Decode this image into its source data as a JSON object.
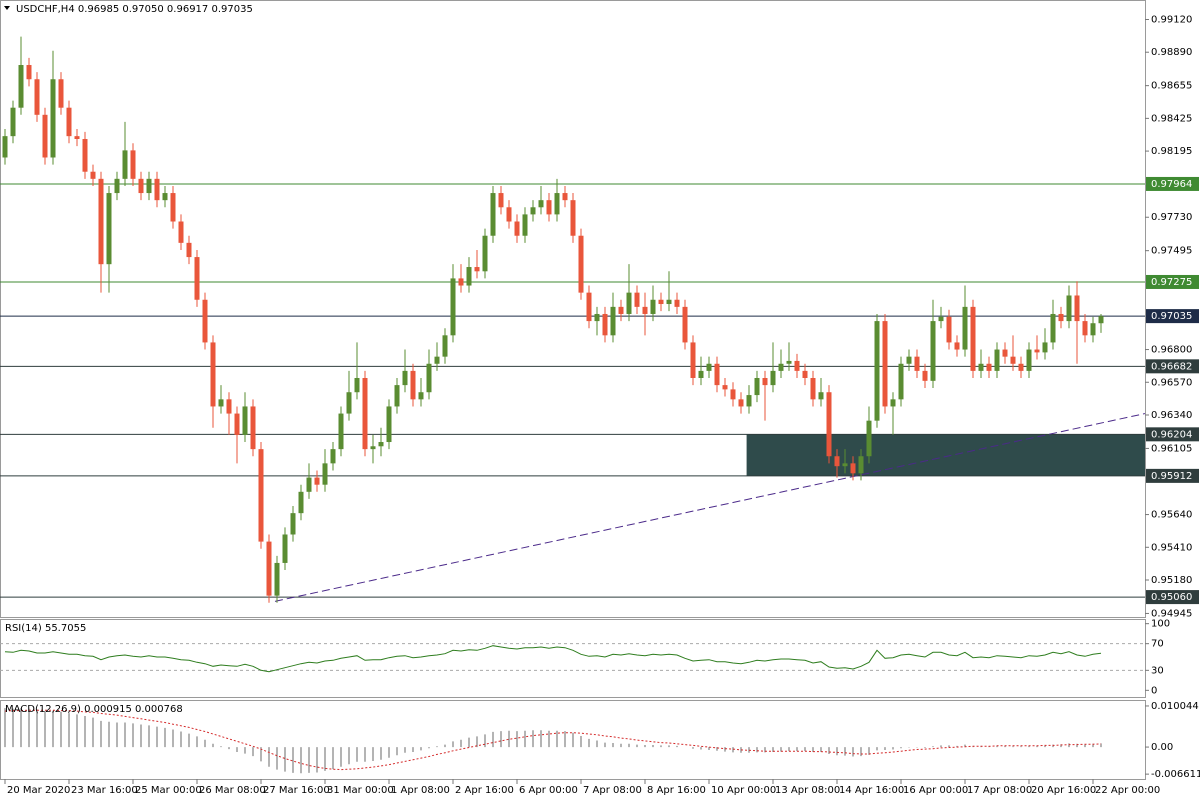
{
  "chart_data": [
    {
      "type": "candlestick",
      "title": "USDCHF,H4  0.96985 0.97050 0.96917 0.97035",
      "xlim": [
        -0.625,
        142.5
      ],
      "xticks": [
        {
          "value": 0,
          "label": "20 Mar 2020"
        },
        {
          "value": 8,
          "label": "23 Mar 16:00"
        },
        {
          "value": 16,
          "label": "25 Mar 00:00"
        },
        {
          "value": 24,
          "label": "26 Mar 08:00"
        },
        {
          "value": 32,
          "label": "27 Mar 16:00"
        },
        {
          "value": 40,
          "label": "31 Mar 00:00"
        },
        {
          "value": 48,
          "label": "1 Apr 08:00"
        },
        {
          "value": 56,
          "label": "2 Apr 16:00"
        },
        {
          "value": 64,
          "label": "6 Apr 00:00"
        },
        {
          "value": 72,
          "label": "7 Apr 08:00"
        },
        {
          "value": 80,
          "label": "8 Apr 16:00"
        },
        {
          "value": 88,
          "label": "10 Apr 00:00"
        },
        {
          "value": 96,
          "label": "13 Apr 08:00"
        },
        {
          "value": 104,
          "label": "14 Apr 16:00"
        },
        {
          "value": 112,
          "label": "16 Apr 00:00"
        },
        {
          "value": 120,
          "label": "17 Apr 08:00"
        },
        {
          "value": 128,
          "label": "20 Apr 16:00"
        },
        {
          "value": 136,
          "label": "22 Apr 00:00"
        }
      ],
      "ylim": [
        0.9492,
        0.9925
      ],
      "yticks": [
        {
          "value": 0.9912,
          "label": "0.99120"
        },
        {
          "value": 0.9889,
          "label": "0.98890"
        },
        0.98655,
        0.98425,
        0.98195,
        {
          "value": 0.9773,
          "label": "0.97730"
        },
        0.97495,
        {
          "value": 0.968,
          "label": "0.96800"
        },
        {
          "value": 0.9657,
          "label": "0.96570"
        },
        {
          "value": 0.9634,
          "label": "0.96340"
        },
        0.96105,
        {
          "value": 0.9564,
          "label": "0.95640"
        },
        {
          "value": 0.9541,
          "label": "0.95410"
        },
        {
          "value": 0.9518,
          "label": "0.95180"
        },
        0.94945
      ],
      "up_color": "#5a8c32",
      "down_color": "#e9563b",
      "open": [
        0.9815,
        0.983,
        0.985,
        0.988,
        0.987,
        0.9845,
        0.9815,
        0.987,
        0.985,
        0.983,
        0.9828,
        0.9805,
        0.98,
        0.974,
        0.979,
        0.98,
        0.982,
        0.98,
        0.979,
        0.98,
        0.9785,
        0.979,
        0.977,
        0.9755,
        0.9745,
        0.9715,
        0.9685,
        0.964,
        0.9645,
        0.9635,
        0.962,
        0.964,
        0.961,
        0.9545,
        0.9507,
        0.953,
        0.955,
        0.9565,
        0.958,
        0.959,
        0.9585,
        0.96,
        0.961,
        0.9635,
        0.965,
        0.966,
        0.961,
        0.9612,
        0.9615,
        0.964,
        0.9655,
        0.9665,
        0.9645,
        0.965,
        0.967,
        0.9675,
        0.969,
        0.973,
        0.9725,
        0.9738,
        0.9735,
        0.976,
        0.979,
        0.978,
        0.977,
        0.976,
        0.9775,
        0.978,
        0.9785,
        0.9775,
        0.979,
        0.9785,
        0.976,
        0.972,
        0.97,
        0.9705,
        0.969,
        0.971,
        0.9705,
        0.972,
        0.971,
        0.9705,
        0.9715,
        0.9712,
        0.9715,
        0.971,
        0.9685,
        0.966,
        0.9665,
        0.967,
        0.9655,
        0.9652,
        0.9645,
        0.964,
        0.9648,
        0.966,
        0.9655,
        0.9665,
        0.967,
        0.9672,
        0.9665,
        0.966,
        0.9645,
        0.965,
        0.9605,
        0.9598,
        0.96,
        0.9593,
        0.9605,
        0.963,
        0.97,
        0.964,
        0.9645,
        0.967,
        0.9675,
        0.9665,
        0.9658,
        0.97,
        0.9703,
        0.9685,
        0.968,
        0.971,
        0.9665,
        0.967,
        0.9665,
        0.968,
        0.9675,
        0.967,
        0.9665,
        0.968,
        0.9678,
        0.9685,
        0.9705,
        0.97,
        0.9718,
        0.97,
        0.969,
        0.96985
      ],
      "high": [
        0.9835,
        0.9855,
        0.99,
        0.9885,
        0.9875,
        0.985,
        0.989,
        0.9875,
        0.9855,
        0.9835,
        0.9833,
        0.981,
        0.9805,
        0.9795,
        0.9805,
        0.984,
        0.9825,
        0.9805,
        0.9805,
        0.9805,
        0.9795,
        0.9795,
        0.9775,
        0.976,
        0.975,
        0.972,
        0.969,
        0.9655,
        0.965,
        0.964,
        0.965,
        0.9645,
        0.9615,
        0.955,
        0.9535,
        0.9555,
        0.957,
        0.9585,
        0.96,
        0.9595,
        0.961,
        0.9615,
        0.964,
        0.9665,
        0.9685,
        0.9665,
        0.962,
        0.9625,
        0.9645,
        0.966,
        0.968,
        0.967,
        0.966,
        0.968,
        0.9685,
        0.9695,
        0.974,
        0.974,
        0.9745,
        0.975,
        0.9765,
        0.9795,
        0.9795,
        0.9785,
        0.9775,
        0.978,
        0.9785,
        0.9795,
        0.979,
        0.98,
        0.9795,
        0.979,
        0.9765,
        0.9725,
        0.971,
        0.971,
        0.972,
        0.9715,
        0.974,
        0.9725,
        0.972,
        0.9725,
        0.972,
        0.9735,
        0.972,
        0.9715,
        0.969,
        0.9675,
        0.9675,
        0.9675,
        0.966,
        0.9657,
        0.965,
        0.9655,
        0.9665,
        0.9665,
        0.9685,
        0.968,
        0.9685,
        0.9677,
        0.967,
        0.9665,
        0.966,
        0.9655,
        0.961,
        0.961,
        0.9605,
        0.961,
        0.964,
        0.9705,
        0.9705,
        0.965,
        0.9675,
        0.968,
        0.968,
        0.967,
        0.9715,
        0.971,
        0.9708,
        0.969,
        0.9725,
        0.9715,
        0.968,
        0.9675,
        0.9685,
        0.9685,
        0.969,
        0.9675,
        0.9685,
        0.969,
        0.9695,
        0.9715,
        0.971,
        0.9725,
        0.9728,
        0.9705,
        0.9703,
        0.9705
      ],
      "low": [
        0.981,
        0.9825,
        0.9845,
        0.9865,
        0.984,
        0.981,
        0.981,
        0.9845,
        0.9825,
        0.9823,
        0.98,
        0.9795,
        0.972,
        0.972,
        0.9785,
        0.9795,
        0.9795,
        0.9785,
        0.9785,
        0.978,
        0.978,
        0.9765,
        0.975,
        0.974,
        0.971,
        0.968,
        0.9625,
        0.9635,
        0.962,
        0.96,
        0.9615,
        0.9605,
        0.954,
        0.9502,
        0.9502,
        0.9525,
        0.9545,
        0.956,
        0.9575,
        0.958,
        0.958,
        0.9595,
        0.9605,
        0.963,
        0.9645,
        0.9605,
        0.96,
        0.9605,
        0.961,
        0.9635,
        0.965,
        0.964,
        0.964,
        0.9645,
        0.9665,
        0.967,
        0.9685,
        0.972,
        0.972,
        0.973,
        0.973,
        0.9755,
        0.9775,
        0.9765,
        0.9755,
        0.9755,
        0.977,
        0.9775,
        0.977,
        0.977,
        0.978,
        0.9755,
        0.9715,
        0.9695,
        0.969,
        0.9685,
        0.9685,
        0.97,
        0.97,
        0.9705,
        0.969,
        0.97,
        0.9707,
        0.9707,
        0.9705,
        0.968,
        0.9655,
        0.9655,
        0.966,
        0.965,
        0.9647,
        0.964,
        0.9635,
        0.9635,
        0.9643,
        0.963,
        0.965,
        0.966,
        0.9665,
        0.966,
        0.9655,
        0.964,
        0.964,
        0.96,
        0.959,
        0.9593,
        0.9588,
        0.9588,
        0.96,
        0.9625,
        0.9635,
        0.962,
        0.964,
        0.9665,
        0.966,
        0.9653,
        0.9653,
        0.9695,
        0.968,
        0.9675,
        0.9675,
        0.966,
        0.966,
        0.966,
        0.966,
        0.967,
        0.9665,
        0.966,
        0.966,
        0.9673,
        0.9673,
        0.968,
        0.9695,
        0.9695,
        0.967,
        0.9685,
        0.9685,
        0.96917
      ],
      "close": [
        0.983,
        0.985,
        0.988,
        0.987,
        0.9845,
        0.9815,
        0.987,
        0.985,
        0.983,
        0.9828,
        0.9805,
        0.98,
        0.974,
        0.979,
        0.98,
        0.982,
        0.98,
        0.979,
        0.98,
        0.9785,
        0.979,
        0.977,
        0.9755,
        0.9745,
        0.9715,
        0.9685,
        0.964,
        0.9645,
        0.9635,
        0.962,
        0.964,
        0.961,
        0.9545,
        0.9507,
        0.953,
        0.955,
        0.9565,
        0.958,
        0.959,
        0.9585,
        0.96,
        0.961,
        0.9635,
        0.965,
        0.966,
        0.961,
        0.9612,
        0.9615,
        0.964,
        0.9655,
        0.9665,
        0.9645,
        0.965,
        0.967,
        0.9675,
        0.969,
        0.973,
        0.9725,
        0.9738,
        0.9735,
        0.976,
        0.979,
        0.978,
        0.977,
        0.976,
        0.9775,
        0.978,
        0.9785,
        0.9775,
        0.979,
        0.9785,
        0.976,
        0.972,
        0.97,
        0.9705,
        0.969,
        0.971,
        0.9705,
        0.972,
        0.971,
        0.9705,
        0.9715,
        0.9712,
        0.9715,
        0.971,
        0.9685,
        0.966,
        0.9665,
        0.967,
        0.9655,
        0.9652,
        0.9645,
        0.964,
        0.9648,
        0.966,
        0.9655,
        0.9665,
        0.967,
        0.9672,
        0.9665,
        0.966,
        0.9645,
        0.965,
        0.9605,
        0.9598,
        0.96,
        0.9593,
        0.9605,
        0.963,
        0.97,
        0.964,
        0.9645,
        0.967,
        0.9675,
        0.9665,
        0.9658,
        0.97,
        0.9703,
        0.9685,
        0.968,
        0.971,
        0.9665,
        0.967,
        0.9665,
        0.968,
        0.9675,
        0.967,
        0.9665,
        0.968,
        0.9678,
        0.9685,
        0.9705,
        0.97,
        0.9718,
        0.97,
        0.969,
        0.96985,
        0.97035
      ],
      "levels": [
        {
          "value": 0.97964,
          "color": "#3f8a32"
        },
        {
          "value": 0.97275,
          "color": "#3f8a32"
        },
        {
          "value": 0.97035,
          "color": "#1e2c48"
        },
        {
          "value": 0.96682,
          "color": "#2f3d3d"
        },
        {
          "value": 0.96204,
          "color": "#2f3d3d"
        },
        {
          "value": 0.95912,
          "color": "#2f3d3d"
        },
        {
          "value": 0.9506,
          "label": "0.95060",
          "color": "#2f3d3d"
        }
      ],
      "zone": {
        "x0": 92.7,
        "low": 0.95912,
        "high": 0.96204,
        "color": "#2f4b4b"
      },
      "trendline": {
        "x": [
          33.75,
          142.5
        ],
        "y": [
          0.9503,
          0.9635
        ],
        "color": "#4b2a8a"
      }
    },
    {
      "type": "line",
      "title": "RSI(14) 55.7055",
      "xlim": [
        -0.625,
        142.5
      ],
      "ylim": [
        -10,
        107
      ],
      "yticks": [
        0,
        30,
        70,
        100
      ],
      "levels": [
        30,
        70
      ],
      "color": "#2e7d1e",
      "values": [
        58,
        57,
        60,
        59,
        56,
        56,
        58,
        56,
        54,
        54,
        52,
        51,
        46,
        50,
        52,
        53,
        51,
        50,
        52,
        50,
        50,
        48,
        46,
        45,
        42,
        40,
        36,
        38,
        37,
        36,
        39,
        36,
        30,
        28,
        31,
        34,
        37,
        40,
        42,
        41,
        44,
        45,
        48,
        50,
        52,
        45,
        46,
        46,
        49,
        51,
        52,
        49,
        50,
        52,
        53,
        55,
        60,
        59,
        61,
        60,
        63,
        67,
        65,
        63,
        62,
        64,
        64,
        65,
        63,
        65,
        64,
        60,
        54,
        51,
        52,
        50,
        54,
        53,
        55,
        53,
        52,
        54,
        53,
        54,
        53,
        48,
        44,
        45,
        46,
        43,
        43,
        41,
        40,
        42,
        45,
        44,
        46,
        47,
        47,
        46,
        45,
        41,
        43,
        35,
        33,
        34,
        32,
        36,
        42,
        60,
        48,
        49,
        53,
        54,
        52,
        50,
        57,
        57,
        53,
        52,
        57,
        49,
        50,
        49,
        52,
        51,
        50,
        49,
        52,
        51,
        53,
        57,
        55,
        58,
        53,
        51,
        54,
        55.7055
      ]
    },
    {
      "type": "macd",
      "title": "MACD(12,26,9) 0.000915 0.000768",
      "xlim": [
        -0.625,
        142.5
      ],
      "ylim": [
        -0.0078,
        0.0115
      ],
      "yticks": [
        0.010044,
        {
          "value": 0,
          "label": "0.00"
        },
        -0.006611
      ],
      "histogram": {
        "color": "#6a6a6a",
        "values": [
          0.0095,
          0.0094,
          0.0095,
          0.0094,
          0.0092,
          0.0088,
          0.0088,
          0.0086,
          0.0083,
          0.008,
          0.0076,
          0.0072,
          0.0064,
          0.0062,
          0.006,
          0.006,
          0.0058,
          0.0055,
          0.0053,
          0.005,
          0.0047,
          0.0043,
          0.0038,
          0.0033,
          0.0026,
          0.0018,
          0.0008,
          0.0002,
          -0.0005,
          -0.0012,
          -0.0016,
          -0.0022,
          -0.0035,
          -0.0048,
          -0.0055,
          -0.006,
          -0.0063,
          -0.0064,
          -0.0063,
          -0.0062,
          -0.0058,
          -0.0054,
          -0.0048,
          -0.0042,
          -0.0036,
          -0.0036,
          -0.0034,
          -0.0031,
          -0.0026,
          -0.002,
          -0.0014,
          -0.0012,
          -0.0008,
          -0.0003,
          0.0002,
          0.0006,
          0.0014,
          0.0018,
          0.0023,
          0.0026,
          0.0031,
          0.0037,
          0.0039,
          0.004,
          0.0039,
          0.004,
          0.0041,
          0.0041,
          0.004,
          0.004,
          0.0039,
          0.0035,
          0.0027,
          0.002,
          0.0016,
          0.0011,
          0.001,
          0.0008,
          0.0008,
          0.0006,
          0.0005,
          0.0005,
          0.0004,
          0.0004,
          0.0003,
          0,
          -0.0004,
          -0.0006,
          -0.0007,
          -0.0009,
          -0.0011,
          -0.0013,
          -0.0014,
          -0.0014,
          -0.0013,
          -0.0013,
          -0.0012,
          -0.0011,
          -0.001,
          -0.001,
          -0.001,
          -0.0012,
          -0.0012,
          -0.0017,
          -0.002,
          -0.0021,
          -0.0023,
          -0.0022,
          -0.0019,
          -0.0008,
          -0.0007,
          -0.0006,
          -0.0003,
          -0.0001,
          -0.0001,
          -0.0002,
          0.0002,
          0.0004,
          0.0004,
          0.0003,
          0.0006,
          0.0003,
          0.0003,
          0.0002,
          0.0003,
          0.0003,
          0.0002,
          0.0002,
          0.0003,
          0.0003,
          0.0004,
          0.0006,
          0.0007,
          0.0009,
          0.0008,
          0.0007,
          0.0008,
          0.000915
        ]
      },
      "signal": {
        "color": "#d42a2a",
        "values": [
          0.0088,
          0.0089,
          0.0089,
          0.009,
          0.009,
          0.009,
          0.009,
          0.0089,
          0.0089,
          0.0088,
          0.0086,
          0.0085,
          0.0082,
          0.008,
          0.0078,
          0.0075,
          0.0072,
          0.0069,
          0.0066,
          0.0063,
          0.006,
          0.0056,
          0.0052,
          0.0048,
          0.0043,
          0.0038,
          0.0032,
          0.0026,
          0.002,
          0.0014,
          0.0008,
          0.0002,
          -0.0005,
          -0.0013,
          -0.0021,
          -0.0028,
          -0.0034,
          -0.004,
          -0.0045,
          -0.0049,
          -0.0052,
          -0.0054,
          -0.0055,
          -0.0054,
          -0.0053,
          -0.0051,
          -0.0049,
          -0.0046,
          -0.0043,
          -0.0039,
          -0.0035,
          -0.0031,
          -0.0027,
          -0.0023,
          -0.0018,
          -0.0014,
          -0.0009,
          -0.0005,
          -0.0001,
          0.0003,
          0.0007,
          0.0011,
          0.0015,
          0.0019,
          0.0022,
          0.0025,
          0.0028,
          0.003,
          0.0032,
          0.0034,
          0.0035,
          0.0035,
          0.0034,
          0.0032,
          0.003,
          0.0027,
          0.0025,
          0.0022,
          0.002,
          0.0017,
          0.0015,
          0.0013,
          0.0011,
          0.001,
          0.0008,
          0.0006,
          0.0004,
          0.0002,
          0,
          -0.0002,
          -0.0004,
          -0.0005,
          -0.0007,
          -0.0008,
          -0.0009,
          -0.001,
          -0.001,
          -0.001,
          -0.001,
          -0.001,
          -0.001,
          -0.0011,
          -0.0011,
          -0.0012,
          -0.0013,
          -0.0014,
          -0.0016,
          -0.0017,
          -0.0017,
          -0.0015,
          -0.0014,
          -0.0012,
          -0.001,
          -0.0008,
          -0.0006,
          -0.0005,
          -0.0004,
          -0.0002,
          -0.0001,
          0,
          0.0001,
          0.0002,
          0.0002,
          0.0002,
          0.0003,
          0.0003,
          0.0003,
          0.0003,
          0.0003,
          0.0003,
          0.0004,
          0.0004,
          0.0005,
          0.0006,
          0.0006,
          0.0007,
          0.0007,
          0.000768
        ]
      }
    }
  ]
}
